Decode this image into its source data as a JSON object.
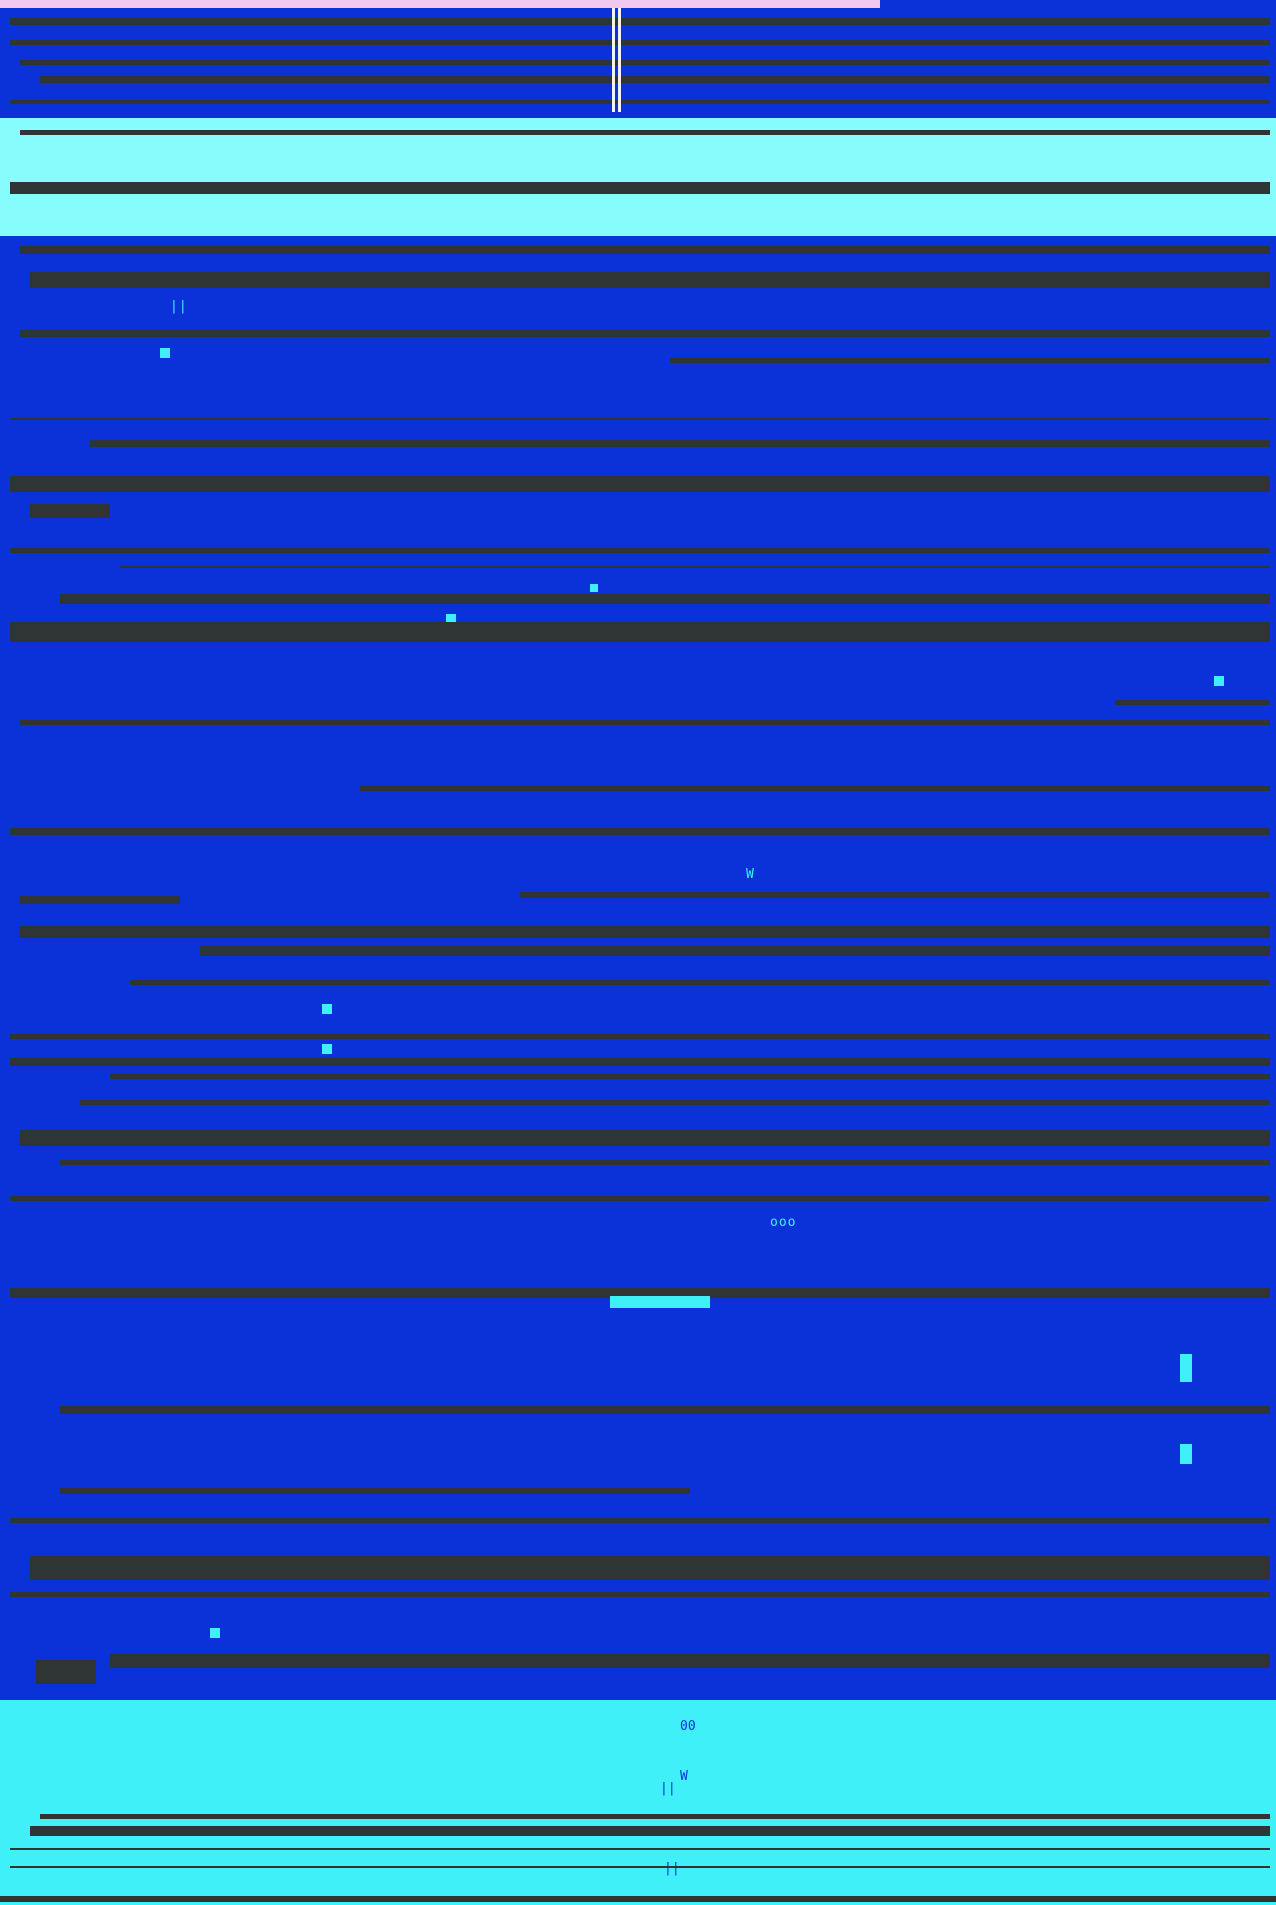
{
  "screen": {
    "text": []
  },
  "colors": {
    "background": "#0a32d8",
    "accent_light": "#86fcfc",
    "accent_cyan": "#40f0f8",
    "line": "#2f3434",
    "top_strip": "#f0c8f0"
  },
  "glyphs": {
    "g1": "||",
    "g2": "W",
    "g3": "ooo",
    "g4": "00",
    "g5": "W",
    "g6": "||",
    "g7": "W"
  }
}
